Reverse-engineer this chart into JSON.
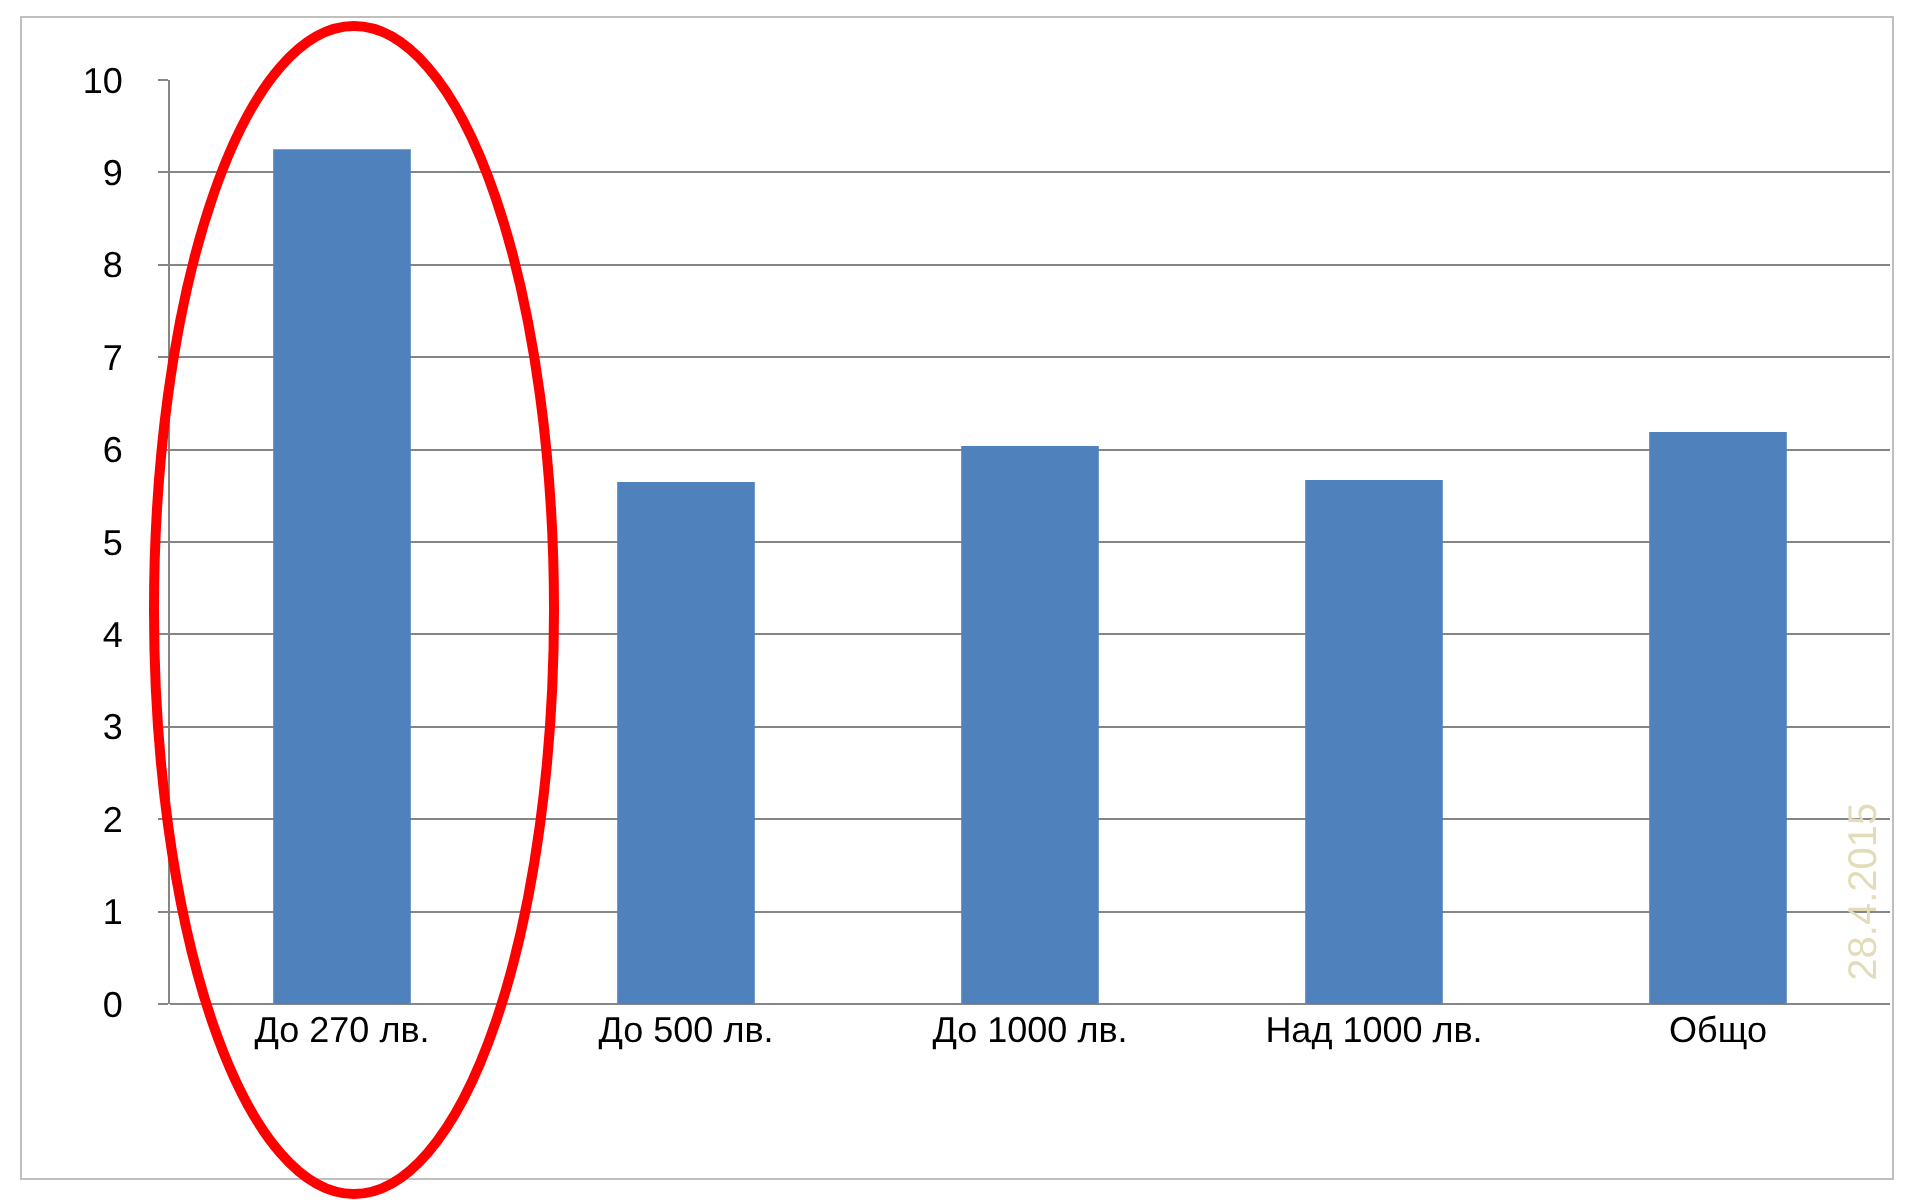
{
  "chart_data": {
    "type": "bar",
    "categories": [
      "До 270 лв.",
      "До 500 лв.",
      "До 1000 лв.",
      "Над 1000 лв.",
      "Общо"
    ],
    "values": [
      9.25,
      5.65,
      6.04,
      5.67,
      6.19
    ],
    "color": "#4f81bd",
    "ylim": [
      0,
      10
    ],
    "yticks": [
      0,
      1,
      2,
      3,
      4,
      5,
      6,
      7,
      8,
      9,
      10
    ],
    "grid": "y",
    "annotations": [
      "28.4.2015"
    ]
  }
}
